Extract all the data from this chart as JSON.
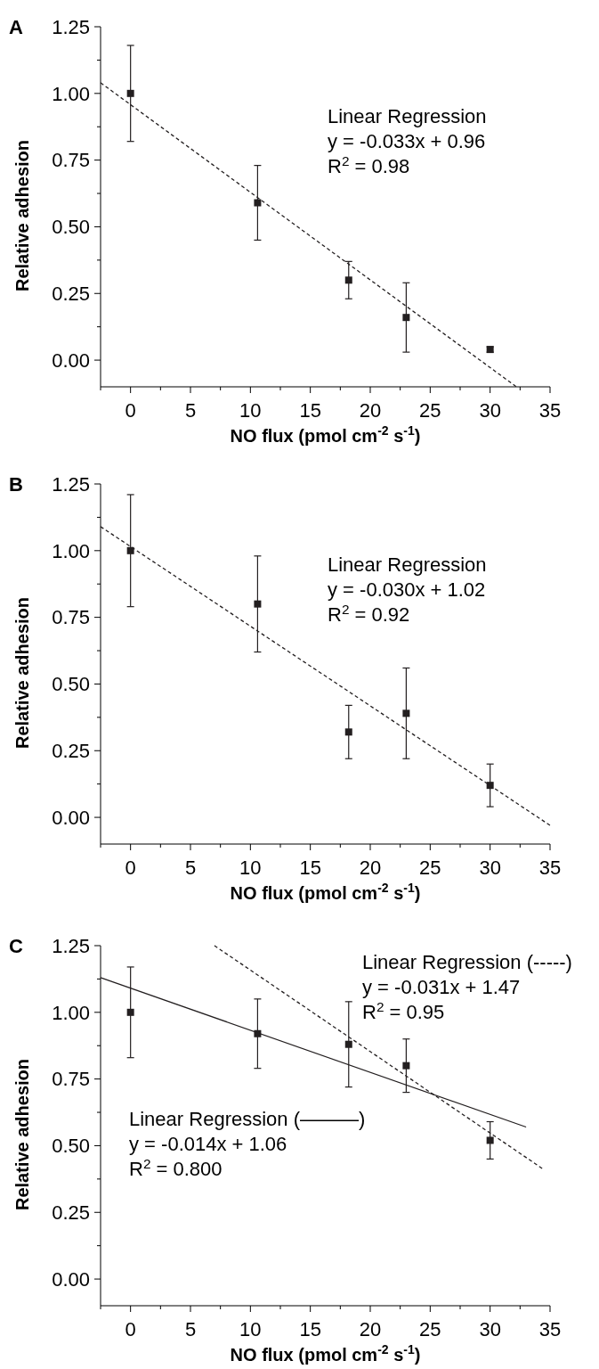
{
  "chart_data": [
    {
      "type": "scatter",
      "title": "A",
      "xlabel": "NO flux (pmol cm$^{-2}$ s$^{-1}$)",
      "ylabel": "Relative adhesion",
      "xlim": [
        -2.5,
        35
      ],
      "ylim": [
        -0.1,
        1.25
      ],
      "xticks": [
        {
          "value": -2.5,
          "label": null
        },
        0,
        {
          "value": 2.5,
          "label": null
        },
        5,
        {
          "value": 7.5,
          "label": null
        },
        10,
        {
          "value": 12.5,
          "label": null
        },
        15,
        {
          "value": 17.5,
          "label": null
        },
        20,
        {
          "value": 22.5,
          "label": null
        },
        25,
        {
          "value": 27.5,
          "label": null
        },
        30,
        {
          "value": 32.5,
          "label": null
        },
        35
      ],
      "yticks": [
        {
          "value": 0,
          "label": "0.00"
        },
        {
          "value": 0.125,
          "label": null
        },
        {
          "value": 0.25,
          "label": "0.25"
        },
        {
          "value": 0.375,
          "label": null
        },
        {
          "value": 0.5,
          "label": "0.50"
        },
        {
          "value": 0.625,
          "label": null
        },
        {
          "value": 0.75,
          "label": "0.75"
        },
        {
          "value": 0.875,
          "label": null
        },
        {
          "value": 1,
          "label": "1.00"
        },
        {
          "value": 1.125,
          "label": null
        },
        {
          "value": 1.25,
          "label": "1.25"
        }
      ],
      "grid": false,
      "annotations": [
        "Linear Regression",
        "y = -0.033x + 0.96",
        "R$^{2}$ = 0.98"
      ],
      "series": [
        {
          "color": "#231f20",
          "marker": "square",
          "x": [
            0,
            10.6,
            18.2,
            23,
            30
          ],
          "values": [
            1.0,
            0.59,
            0.3,
            0.16,
            0.04
          ],
          "errors": [
            [
              0.82,
              1.18
            ],
            [
              0.45,
              0.73
            ],
            [
              0.23,
              0.37
            ],
            [
              0.03,
              0.29
            ],
            [
              0.03,
              0.05
            ]
          ]
        },
        {
          "type": "line",
          "color": "#231f20",
          "line_style": "dashed",
          "x": [
            -2.5,
            32.2
          ],
          "values": [
            1.04,
            -0.1
          ]
        }
      ]
    },
    {
      "type": "scatter",
      "title": "B",
      "xlabel": "NO flux (pmol cm$^{-2}$ s$^{-1}$)",
      "ylabel": "Relative adhesion",
      "xlim": [
        -2.5,
        35
      ],
      "ylim": [
        -0.1,
        1.25
      ],
      "xticks": [
        {
          "value": -2.5,
          "label": null
        },
        0,
        {
          "value": 2.5,
          "label": null
        },
        5,
        {
          "value": 7.5,
          "label": null
        },
        10,
        {
          "value": 12.5,
          "label": null
        },
        15,
        {
          "value": 17.5,
          "label": null
        },
        20,
        {
          "value": 22.5,
          "label": null
        },
        25,
        {
          "value": 27.5,
          "label": null
        },
        30,
        {
          "value": 32.5,
          "label": null
        },
        35
      ],
      "yticks": [
        {
          "value": 0,
          "label": "0.00"
        },
        {
          "value": 0.125,
          "label": null
        },
        {
          "value": 0.25,
          "label": "0.25"
        },
        {
          "value": 0.375,
          "label": null
        },
        {
          "value": 0.5,
          "label": "0.50"
        },
        {
          "value": 0.625,
          "label": null
        },
        {
          "value": 0.75,
          "label": "0.75"
        },
        {
          "value": 0.875,
          "label": null
        },
        {
          "value": 1,
          "label": "1.00"
        },
        {
          "value": 1.125,
          "label": null
        },
        {
          "value": 1.25,
          "label": "1.25"
        }
      ],
      "grid": false,
      "annotations": [
        "Linear Regression",
        "y = -0.030x + 1.02",
        "R$^{2}$ = 0.92"
      ],
      "series": [
        {
          "color": "#231f20",
          "marker": "square",
          "x": [
            0,
            10.6,
            18.2,
            23,
            30
          ],
          "values": [
            1.0,
            0.8,
            0.32,
            0.39,
            0.12
          ],
          "errors": [
            [
              0.79,
              1.21
            ],
            [
              0.62,
              0.98
            ],
            [
              0.22,
              0.42
            ],
            [
              0.22,
              0.56
            ],
            [
              0.04,
              0.2
            ]
          ]
        },
        {
          "type": "line",
          "color": "#231f20",
          "line_style": "dashed",
          "x": [
            -2.5,
            35
          ],
          "values": [
            1.09,
            -0.03
          ]
        }
      ]
    },
    {
      "type": "scatter",
      "title": "C",
      "xlabel": "NO flux (pmol cm$^{-2}$ s$^{-1}$)",
      "ylabel": "Relative adhesion",
      "xlim": [
        -2.5,
        35
      ],
      "ylim": [
        -0.1,
        1.25
      ],
      "xticks": [
        {
          "value": -2.5,
          "label": null
        },
        0,
        {
          "value": 2.5,
          "label": null
        },
        5,
        {
          "value": 7.5,
          "label": null
        },
        10,
        {
          "value": 12.5,
          "label": null
        },
        15,
        {
          "value": 17.5,
          "label": null
        },
        20,
        {
          "value": 22.5,
          "label": null
        },
        25,
        {
          "value": 27.5,
          "label": null
        },
        30,
        {
          "value": 32.5,
          "label": null
        },
        35
      ],
      "yticks": [
        {
          "value": 0,
          "label": "0.00"
        },
        {
          "value": 0.125,
          "label": null
        },
        {
          "value": 0.25,
          "label": "0.25"
        },
        {
          "value": 0.375,
          "label": null
        },
        {
          "value": 0.5,
          "label": "0.50"
        },
        {
          "value": 0.625,
          "label": null
        },
        {
          "value": 0.75,
          "label": "0.75"
        },
        {
          "value": 0.875,
          "label": null
        },
        {
          "value": 1,
          "label": "1.00"
        },
        {
          "value": 1.125,
          "label": null
        },
        {
          "value": 1.25,
          "label": "1.25"
        }
      ],
      "grid": false,
      "annotations": [
        "Linear Regression (-----)",
        "y = -0.031x + 1.47",
        "R$^{2}$ = 0.95",
        "Linear Regression (———)",
        "y = -0.014x + 1.06",
        "R$^{2}$ = 0.800"
      ],
      "series": [
        {
          "color": "#231f20",
          "marker": "square",
          "x": [
            0,
            10.6,
            18.2,
            23,
            30
          ],
          "values": [
            1.0,
            0.92,
            0.88,
            0.8,
            0.52
          ],
          "errors": [
            [
              0.83,
              1.17
            ],
            [
              0.79,
              1.05
            ],
            [
              0.72,
              1.04
            ],
            [
              0.7,
              0.9
            ],
            [
              0.45,
              0.59
            ]
          ]
        },
        {
          "type": "line",
          "color": "#231f20",
          "line_style": "dashed",
          "x": [
            7,
            34.5
          ],
          "values": [
            1.25,
            0.41
          ]
        },
        {
          "type": "line",
          "color": "#231f20",
          "line_style": "solid",
          "x": [
            -2.5,
            33
          ],
          "values": [
            1.13,
            0.57
          ]
        }
      ]
    }
  ]
}
